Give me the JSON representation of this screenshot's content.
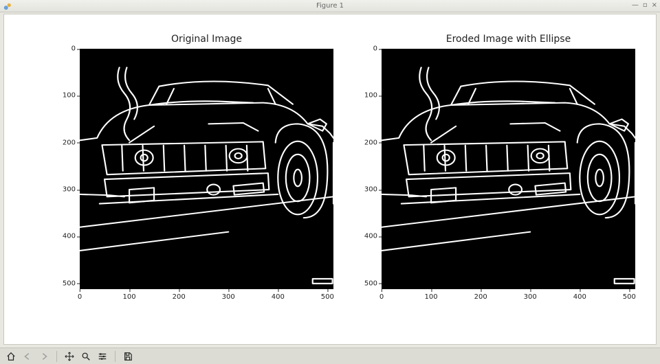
{
  "window": {
    "title": "Figure 1",
    "controls": {
      "minimize": "—",
      "maximize": "▫",
      "close": "×"
    }
  },
  "figure": {
    "background_color": "#ffffff",
    "subplots": [
      {
        "title": "Original Image",
        "type": "image",
        "image_bg": "#000000",
        "stroke_color": "#ffffff",
        "stroke_width": 3,
        "xlim": [
          0,
          512
        ],
        "ylim": [
          512,
          0
        ],
        "xticks": [
          0,
          100,
          200,
          300,
          400,
          500
        ],
        "yticks": [
          0,
          100,
          200,
          300,
          400,
          500
        ],
        "tick_fontsize": 10,
        "title_fontsize": 14
      },
      {
        "title": "Eroded Image with Ellipse",
        "type": "image",
        "image_bg": "#000000",
        "stroke_color": "#ffffff",
        "stroke_width": 2,
        "xlim": [
          0,
          512
        ],
        "ylim": [
          512,
          0
        ],
        "xticks": [
          0,
          100,
          200,
          300,
          400,
          500
        ],
        "yticks": [
          0,
          100,
          200,
          300,
          400,
          500
        ],
        "tick_fontsize": 10,
        "title_fontsize": 14
      }
    ]
  },
  "toolbar": {
    "buttons": [
      {
        "name": "home",
        "enabled": true
      },
      {
        "name": "back",
        "enabled": false
      },
      {
        "name": "forward",
        "enabled": false
      },
      {
        "name": "sep"
      },
      {
        "name": "pan",
        "enabled": true
      },
      {
        "name": "zoom",
        "enabled": true
      },
      {
        "name": "configure",
        "enabled": true
      },
      {
        "name": "sep"
      },
      {
        "name": "save",
        "enabled": true
      }
    ]
  }
}
